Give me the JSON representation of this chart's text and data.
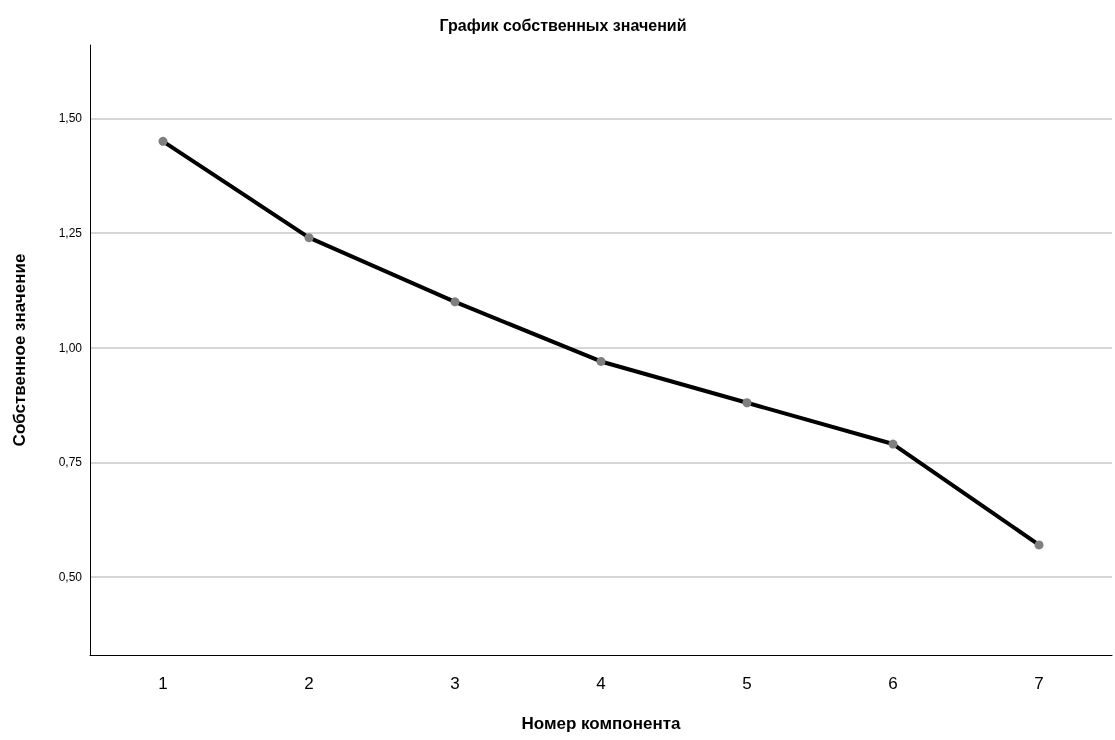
{
  "chart_data": {
    "type": "line",
    "title": "График собственных значений",
    "xlabel": "Номер компонента",
    "ylabel": "Собственное значение",
    "categories": [
      "1",
      "2",
      "3",
      "4",
      "5",
      "6",
      "7"
    ],
    "series": [
      {
        "color": "#000000",
        "values": [
          1.45,
          1.24,
          1.1,
          0.97,
          0.88,
          0.79,
          0.57
        ]
      }
    ],
    "ylim": [
      0.33,
      1.66
    ],
    "yticks": [
      {
        "value": 0.5,
        "label": "0,50"
      },
      {
        "value": 0.75,
        "label": "0,75"
      },
      {
        "value": 1.0,
        "label": "1,00"
      },
      {
        "value": 1.25,
        "label": "1,25"
      },
      {
        "value": 1.5,
        "label": "1,50"
      }
    ],
    "grid": "y",
    "marker": "circle",
    "line_style": "solid"
  }
}
